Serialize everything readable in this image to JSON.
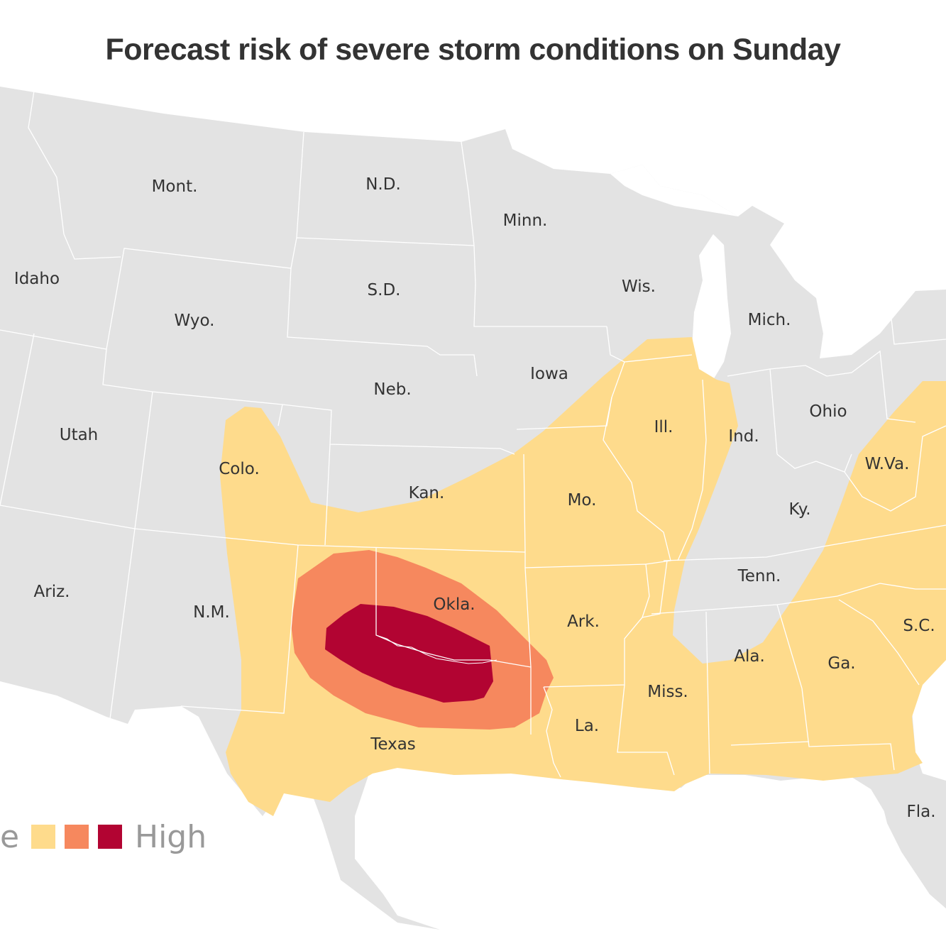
{
  "title": "Forecast risk of severe storm conditions on Sunday",
  "colors": {
    "land": "#e3e3e3",
    "border": "#ffffff",
    "risk_low": "#fedb8c",
    "risk_medium": "#f6885e",
    "risk_high": "#b20432"
  },
  "legend": {
    "low_label_fragment": "e",
    "high_label": "High"
  },
  "states": {
    "mont": "Mont.",
    "nd": "N.D.",
    "minn": "Minn.",
    "idaho": "Idaho",
    "sd": "S.D.",
    "wis": "Wis.",
    "mich": "Mich.",
    "wyo": "Wyo.",
    "iowa": "Iowa",
    "neb": "Neb.",
    "ohio": "Ohio",
    "utah": "Utah",
    "ill": "Ill.",
    "ind": "Ind.",
    "colo": "Colo.",
    "wva": "W.Va.",
    "kan": "Kan.",
    "mo": "Mo.",
    "ky": "Ky.",
    "ariz": "Ariz.",
    "tenn": "Tenn.",
    "okla": "Okla.",
    "nm": "N.M.",
    "ark": "Ark.",
    "sc": "S.C.",
    "ala": "Ala.",
    "ga": "Ga.",
    "miss": "Miss.",
    "la": "La.",
    "texas": "Texas",
    "fla": "Fla."
  }
}
